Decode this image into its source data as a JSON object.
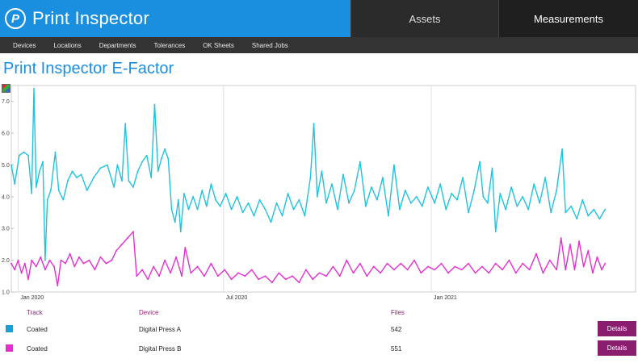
{
  "header": {
    "app_title": "Print Inspector",
    "logo_glyph": "P",
    "tabs": [
      {
        "label": "Assets",
        "active": false
      },
      {
        "label": "Measurements",
        "active": true
      }
    ]
  },
  "subnav": {
    "items": [
      "Devices",
      "Locations",
      "Departments",
      "Tolerances",
      "OK Sheets",
      "Shared Jobs"
    ]
  },
  "page": {
    "title": "Print Inspector E-Factor"
  },
  "chart_data": {
    "type": "line",
    "title": "",
    "xlabel": "",
    "ylabel": "",
    "ylim": [
      1.0,
      7.5
    ],
    "yticks": [
      1.0,
      2.0,
      3.0,
      4.0,
      5.0,
      6.0,
      7.0
    ],
    "xlim": [
      "2019-12-26",
      "2021-07-01"
    ],
    "xticks": [
      {
        "label": "Jan 2020",
        "date": "2020-01-01"
      },
      {
        "label": "Jul 2020",
        "date": "2020-07-01"
      },
      {
        "label": "Jan 2021",
        "date": "2021-01-01"
      }
    ],
    "grid": true,
    "legend": "none",
    "series": [
      {
        "name": "Coated",
        "color": "#1ec3e0",
        "points": [
          [
            "2019-12-26",
            5.0
          ],
          [
            "2019-12-29",
            4.4
          ],
          [
            "2020-01-02",
            5.3
          ],
          [
            "2020-01-06",
            5.4
          ],
          [
            "2020-01-10",
            5.3
          ],
          [
            "2020-01-13",
            4.1
          ],
          [
            "2020-01-15",
            7.4
          ],
          [
            "2020-01-17",
            4.3
          ],
          [
            "2020-01-20",
            4.8
          ],
          [
            "2020-01-23",
            5.1
          ],
          [
            "2020-01-25",
            2.0
          ],
          [
            "2020-01-27",
            3.9
          ],
          [
            "2020-01-30",
            4.2
          ],
          [
            "2020-02-03",
            5.4
          ],
          [
            "2020-02-06",
            4.2
          ],
          [
            "2020-02-10",
            3.9
          ],
          [
            "2020-02-14",
            4.5
          ],
          [
            "2020-02-18",
            4.8
          ],
          [
            "2020-02-22",
            4.6
          ],
          [
            "2020-02-26",
            4.7
          ],
          [
            "2020-03-02",
            4.2
          ],
          [
            "2020-03-08",
            4.6
          ],
          [
            "2020-03-14",
            4.9
          ],
          [
            "2020-03-20",
            5.0
          ],
          [
            "2020-03-26",
            4.3
          ],
          [
            "2020-03-29",
            5.0
          ],
          [
            "2020-04-02",
            4.5
          ],
          [
            "2020-04-05",
            6.3
          ],
          [
            "2020-04-08",
            4.5
          ],
          [
            "2020-04-12",
            4.3
          ],
          [
            "2020-04-16",
            4.8
          ],
          [
            "2020-04-20",
            5.1
          ],
          [
            "2020-04-24",
            5.3
          ],
          [
            "2020-04-28",
            4.6
          ],
          [
            "2020-05-01",
            6.9
          ],
          [
            "2020-05-04",
            4.8
          ],
          [
            "2020-05-07",
            5.2
          ],
          [
            "2020-05-10",
            5.5
          ],
          [
            "2020-05-13",
            5.2
          ],
          [
            "2020-05-16",
            3.6
          ],
          [
            "2020-05-19",
            3.2
          ],
          [
            "2020-05-22",
            3.9
          ],
          [
            "2020-05-24",
            2.9
          ],
          [
            "2020-05-27",
            4.1
          ],
          [
            "2020-05-31",
            3.6
          ],
          [
            "2020-06-04",
            4.0
          ],
          [
            "2020-06-08",
            3.6
          ],
          [
            "2020-06-12",
            4.2
          ],
          [
            "2020-06-16",
            3.7
          ],
          [
            "2020-06-20",
            4.4
          ],
          [
            "2020-06-24",
            3.9
          ],
          [
            "2020-06-28",
            3.7
          ],
          [
            "2020-07-03",
            4.1
          ],
          [
            "2020-07-08",
            3.6
          ],
          [
            "2020-07-13",
            4.0
          ],
          [
            "2020-07-18",
            3.5
          ],
          [
            "2020-07-23",
            3.8
          ],
          [
            "2020-07-28",
            3.4
          ],
          [
            "2020-08-02",
            3.9
          ],
          [
            "2020-08-07",
            3.6
          ],
          [
            "2020-08-12",
            3.2
          ],
          [
            "2020-08-17",
            3.8
          ],
          [
            "2020-08-22",
            3.4
          ],
          [
            "2020-08-27",
            4.1
          ],
          [
            "2020-09-01",
            3.6
          ],
          [
            "2020-09-06",
            3.9
          ],
          [
            "2020-09-11",
            3.4
          ],
          [
            "2020-09-16",
            4.6
          ],
          [
            "2020-09-19",
            6.3
          ],
          [
            "2020-09-22",
            4.0
          ],
          [
            "2020-09-26",
            4.8
          ],
          [
            "2020-09-30",
            3.8
          ],
          [
            "2020-10-05",
            4.4
          ],
          [
            "2020-10-10",
            3.6
          ],
          [
            "2020-10-15",
            4.7
          ],
          [
            "2020-10-20",
            3.8
          ],
          [
            "2020-10-25",
            4.2
          ],
          [
            "2020-10-30",
            5.1
          ],
          [
            "2020-11-04",
            3.7
          ],
          [
            "2020-11-09",
            4.3
          ],
          [
            "2020-11-14",
            3.9
          ],
          [
            "2020-11-19",
            4.6
          ],
          [
            "2020-11-24",
            3.4
          ],
          [
            "2020-11-29",
            5.0
          ],
          [
            "2020-12-04",
            3.6
          ],
          [
            "2020-12-09",
            4.2
          ],
          [
            "2020-12-14",
            3.8
          ],
          [
            "2020-12-19",
            4.0
          ],
          [
            "2020-12-24",
            3.7
          ],
          [
            "2020-12-29",
            4.3
          ],
          [
            "2021-01-04",
            3.8
          ],
          [
            "2021-01-09",
            4.4
          ],
          [
            "2021-01-14",
            3.6
          ],
          [
            "2021-01-19",
            4.1
          ],
          [
            "2021-01-24",
            3.9
          ],
          [
            "2021-01-29",
            4.6
          ],
          [
            "2021-02-03",
            3.5
          ],
          [
            "2021-02-08",
            4.2
          ],
          [
            "2021-02-13",
            5.1
          ],
          [
            "2021-02-16",
            4.0
          ],
          [
            "2021-02-20",
            3.8
          ],
          [
            "2021-02-24",
            4.9
          ],
          [
            "2021-02-27",
            2.9
          ],
          [
            "2021-03-03",
            4.1
          ],
          [
            "2021-03-08",
            3.6
          ],
          [
            "2021-03-13",
            4.3
          ],
          [
            "2021-03-18",
            3.7
          ],
          [
            "2021-03-23",
            4.0
          ],
          [
            "2021-03-28",
            3.6
          ],
          [
            "2021-04-02",
            4.4
          ],
          [
            "2021-04-07",
            3.8
          ],
          [
            "2021-04-12",
            4.6
          ],
          [
            "2021-04-17",
            3.5
          ],
          [
            "2021-04-22",
            4.2
          ],
          [
            "2021-04-27",
            5.5
          ],
          [
            "2021-04-30",
            3.5
          ],
          [
            "2021-05-05",
            3.7
          ],
          [
            "2021-05-10",
            3.3
          ],
          [
            "2021-05-15",
            3.9
          ],
          [
            "2021-05-20",
            3.4
          ],
          [
            "2021-05-25",
            3.6
          ],
          [
            "2021-05-30",
            3.3
          ],
          [
            "2021-06-04",
            3.6
          ]
        ]
      },
      {
        "name": "Coated",
        "color": "#e62ed0",
        "points": [
          [
            "2019-12-26",
            1.9
          ],
          [
            "2019-12-29",
            1.7
          ],
          [
            "2020-01-01",
            2.0
          ],
          [
            "2020-01-04",
            1.6
          ],
          [
            "2020-01-07",
            1.9
          ],
          [
            "2020-01-10",
            1.4
          ],
          [
            "2020-01-13",
            2.0
          ],
          [
            "2020-01-17",
            1.8
          ],
          [
            "2020-01-21",
            2.1
          ],
          [
            "2020-01-25",
            1.7
          ],
          [
            "2020-01-29",
            2.0
          ],
          [
            "2020-02-02",
            1.8
          ],
          [
            "2020-02-05",
            1.2
          ],
          [
            "2020-02-08",
            2.0
          ],
          [
            "2020-02-12",
            1.9
          ],
          [
            "2020-02-16",
            2.2
          ],
          [
            "2020-02-20",
            1.8
          ],
          [
            "2020-02-24",
            2.1
          ],
          [
            "2020-02-28",
            1.9
          ],
          [
            "2020-03-04",
            2.0
          ],
          [
            "2020-03-09",
            1.7
          ],
          [
            "2020-03-14",
            2.1
          ],
          [
            "2020-03-19",
            1.9
          ],
          [
            "2020-03-24",
            2.0
          ],
          [
            "2020-03-28",
            2.3
          ],
          [
            "2020-04-02",
            2.5
          ],
          [
            "2020-04-07",
            2.7
          ],
          [
            "2020-04-12",
            2.9
          ],
          [
            "2020-04-15",
            1.5
          ],
          [
            "2020-04-20",
            1.7
          ],
          [
            "2020-04-25",
            1.4
          ],
          [
            "2020-04-30",
            1.8
          ],
          [
            "2020-05-05",
            1.5
          ],
          [
            "2020-05-10",
            2.0
          ],
          [
            "2020-05-15",
            1.6
          ],
          [
            "2020-05-20",
            2.1
          ],
          [
            "2020-05-25",
            1.5
          ],
          [
            "2020-05-28",
            2.4
          ],
          [
            "2020-06-02",
            1.6
          ],
          [
            "2020-06-08",
            1.8
          ],
          [
            "2020-06-14",
            1.5
          ],
          [
            "2020-06-20",
            1.9
          ],
          [
            "2020-06-26",
            1.5
          ],
          [
            "2020-07-02",
            1.7
          ],
          [
            "2020-07-08",
            1.4
          ],
          [
            "2020-07-14",
            1.6
          ],
          [
            "2020-07-20",
            1.5
          ],
          [
            "2020-07-26",
            1.7
          ],
          [
            "2020-08-01",
            1.4
          ],
          [
            "2020-08-07",
            1.5
          ],
          [
            "2020-08-13",
            1.3
          ],
          [
            "2020-08-19",
            1.6
          ],
          [
            "2020-08-25",
            1.4
          ],
          [
            "2020-08-31",
            1.5
          ],
          [
            "2020-09-06",
            1.3
          ],
          [
            "2020-09-12",
            1.7
          ],
          [
            "2020-09-18",
            1.4
          ],
          [
            "2020-09-24",
            1.6
          ],
          [
            "2020-09-30",
            1.5
          ],
          [
            "2020-10-06",
            1.8
          ],
          [
            "2020-10-12",
            1.5
          ],
          [
            "2020-10-18",
            2.0
          ],
          [
            "2020-10-24",
            1.6
          ],
          [
            "2020-10-30",
            1.9
          ],
          [
            "2020-11-05",
            1.5
          ],
          [
            "2020-11-11",
            1.8
          ],
          [
            "2020-11-17",
            1.6
          ],
          [
            "2020-11-23",
            1.9
          ],
          [
            "2020-11-29",
            1.7
          ],
          [
            "2020-12-05",
            1.9
          ],
          [
            "2020-12-11",
            1.7
          ],
          [
            "2020-12-17",
            2.0
          ],
          [
            "2020-12-23",
            1.6
          ],
          [
            "2020-12-29",
            1.8
          ],
          [
            "2021-01-04",
            1.7
          ],
          [
            "2021-01-10",
            1.9
          ],
          [
            "2021-01-16",
            1.6
          ],
          [
            "2021-01-22",
            1.8
          ],
          [
            "2021-01-28",
            1.7
          ],
          [
            "2021-02-03",
            1.9
          ],
          [
            "2021-02-09",
            1.6
          ],
          [
            "2021-02-15",
            1.8
          ],
          [
            "2021-02-21",
            1.6
          ],
          [
            "2021-02-27",
            1.9
          ],
          [
            "2021-03-05",
            1.7
          ],
          [
            "2021-03-11",
            2.0
          ],
          [
            "2021-03-17",
            1.6
          ],
          [
            "2021-03-23",
            1.9
          ],
          [
            "2021-03-29",
            1.7
          ],
          [
            "2021-04-04",
            2.2
          ],
          [
            "2021-04-10",
            1.6
          ],
          [
            "2021-04-16",
            2.0
          ],
          [
            "2021-04-22",
            1.7
          ],
          [
            "2021-04-26",
            2.7
          ],
          [
            "2021-04-30",
            1.7
          ],
          [
            "2021-05-04",
            2.5
          ],
          [
            "2021-05-08",
            1.7
          ],
          [
            "2021-05-12",
            2.6
          ],
          [
            "2021-05-16",
            1.8
          ],
          [
            "2021-05-20",
            2.3
          ],
          [
            "2021-05-24",
            1.6
          ],
          [
            "2021-05-28",
            2.1
          ],
          [
            "2021-06-01",
            1.7
          ],
          [
            "2021-06-04",
            1.9
          ]
        ]
      }
    ]
  },
  "table": {
    "headers": {
      "track": "Track",
      "device": "Device",
      "files": "Files"
    },
    "rows": [
      {
        "color": "#1a9ed6",
        "track": "Coated",
        "device": "Digital Press A",
        "files": "542",
        "action": "Details"
      },
      {
        "color": "#e62ed0",
        "track": "Coated",
        "device": "Digital Press B",
        "files": "551",
        "action": "Details"
      }
    ]
  }
}
